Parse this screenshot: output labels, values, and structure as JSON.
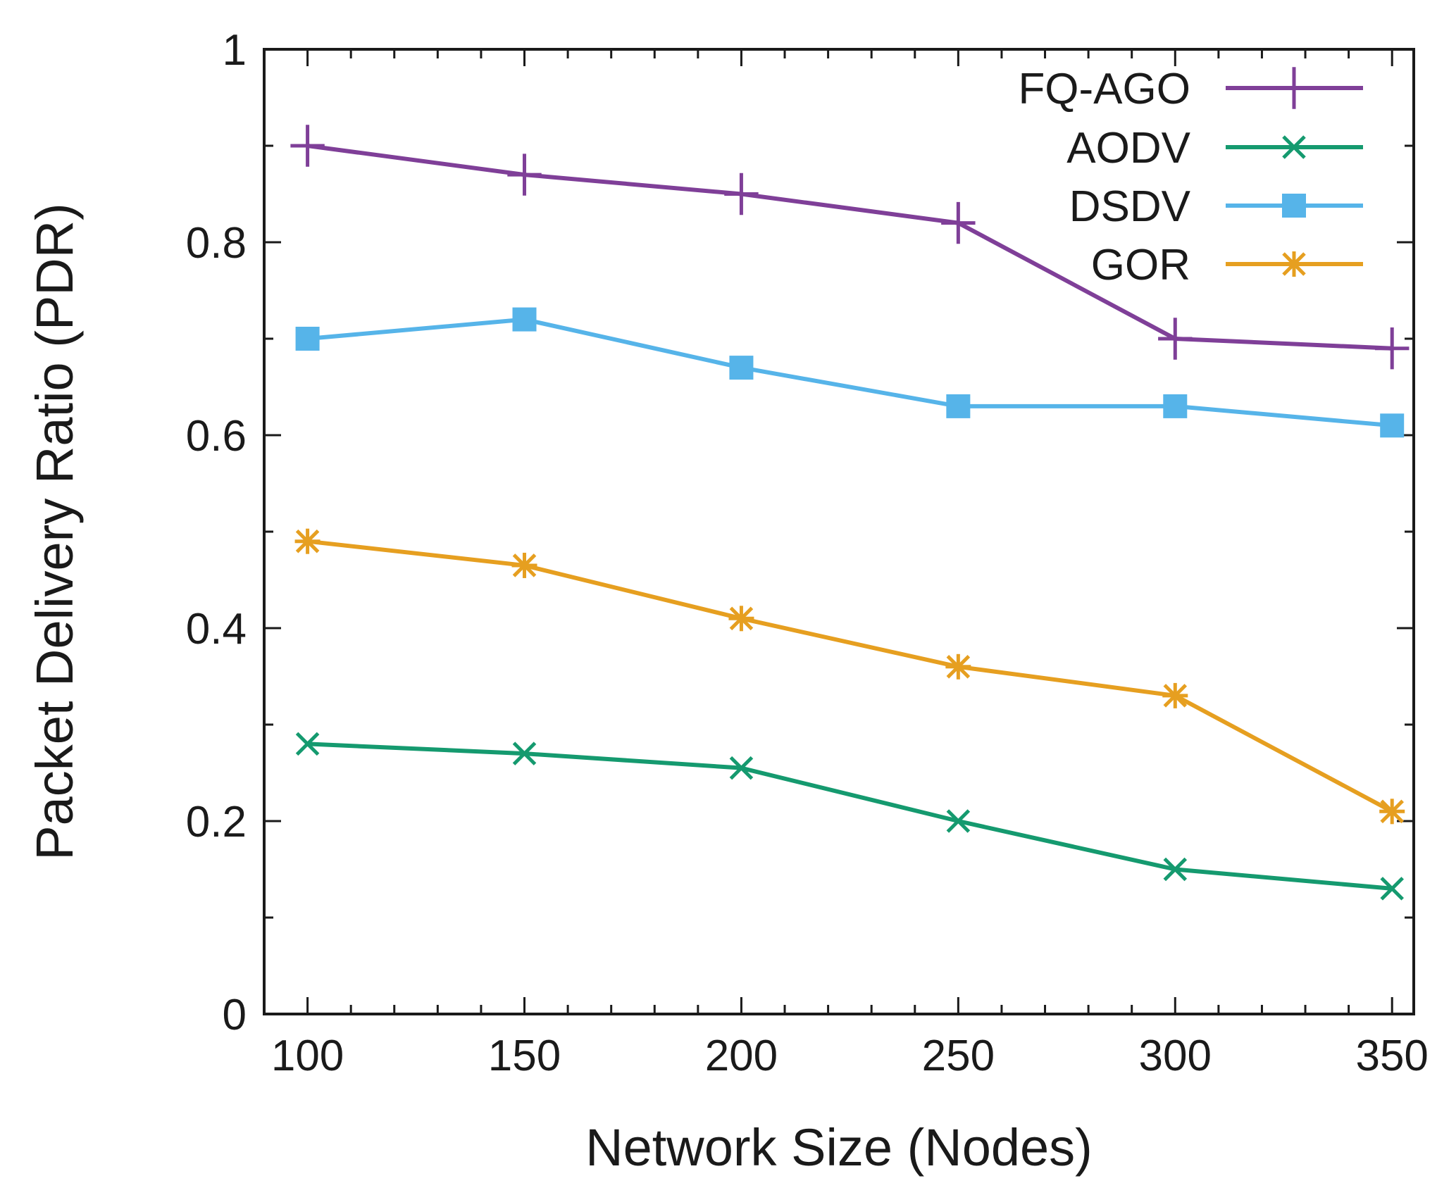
{
  "chart_data": {
    "type": "line",
    "title": "",
    "xlabel": "Network Size (Nodes)",
    "ylabel": "Packet Delivery Ratio (PDR)",
    "xlim": [
      90,
      355
    ],
    "ylim": [
      0,
      1
    ],
    "x": [
      100,
      150,
      200,
      250,
      300,
      350
    ],
    "x_ticks": [
      100,
      150,
      200,
      250,
      300,
      350
    ],
    "x_tick_labels": [
      "100",
      "150",
      "200",
      "250",
      "300",
      "350"
    ],
    "y_ticks": [
      0,
      0.2,
      0.4,
      0.6,
      0.8,
      1
    ],
    "y_tick_labels": [
      "0",
      "0.2",
      "0.4",
      "0.6",
      "0.8",
      "1"
    ],
    "grid": false,
    "legend_position": "top-right",
    "series": [
      {
        "name": "FQ-AGO",
        "color": "#7f3f98",
        "marker": "plus",
        "values": [
          0.9,
          0.87,
          0.85,
          0.82,
          0.7,
          0.69
        ]
      },
      {
        "name": "AODV",
        "color": "#159a6f",
        "marker": "cross",
        "values": [
          0.28,
          0.27,
          0.255,
          0.2,
          0.15,
          0.13
        ]
      },
      {
        "name": "DSDV",
        "color": "#56b4e9",
        "marker": "square",
        "values": [
          0.7,
          0.72,
          0.67,
          0.63,
          0.63,
          0.61
        ]
      },
      {
        "name": "GOR",
        "color": "#e69f20",
        "marker": "asterisk",
        "values": [
          0.49,
          0.465,
          0.41,
          0.36,
          0.33,
          0.21
        ]
      }
    ]
  }
}
